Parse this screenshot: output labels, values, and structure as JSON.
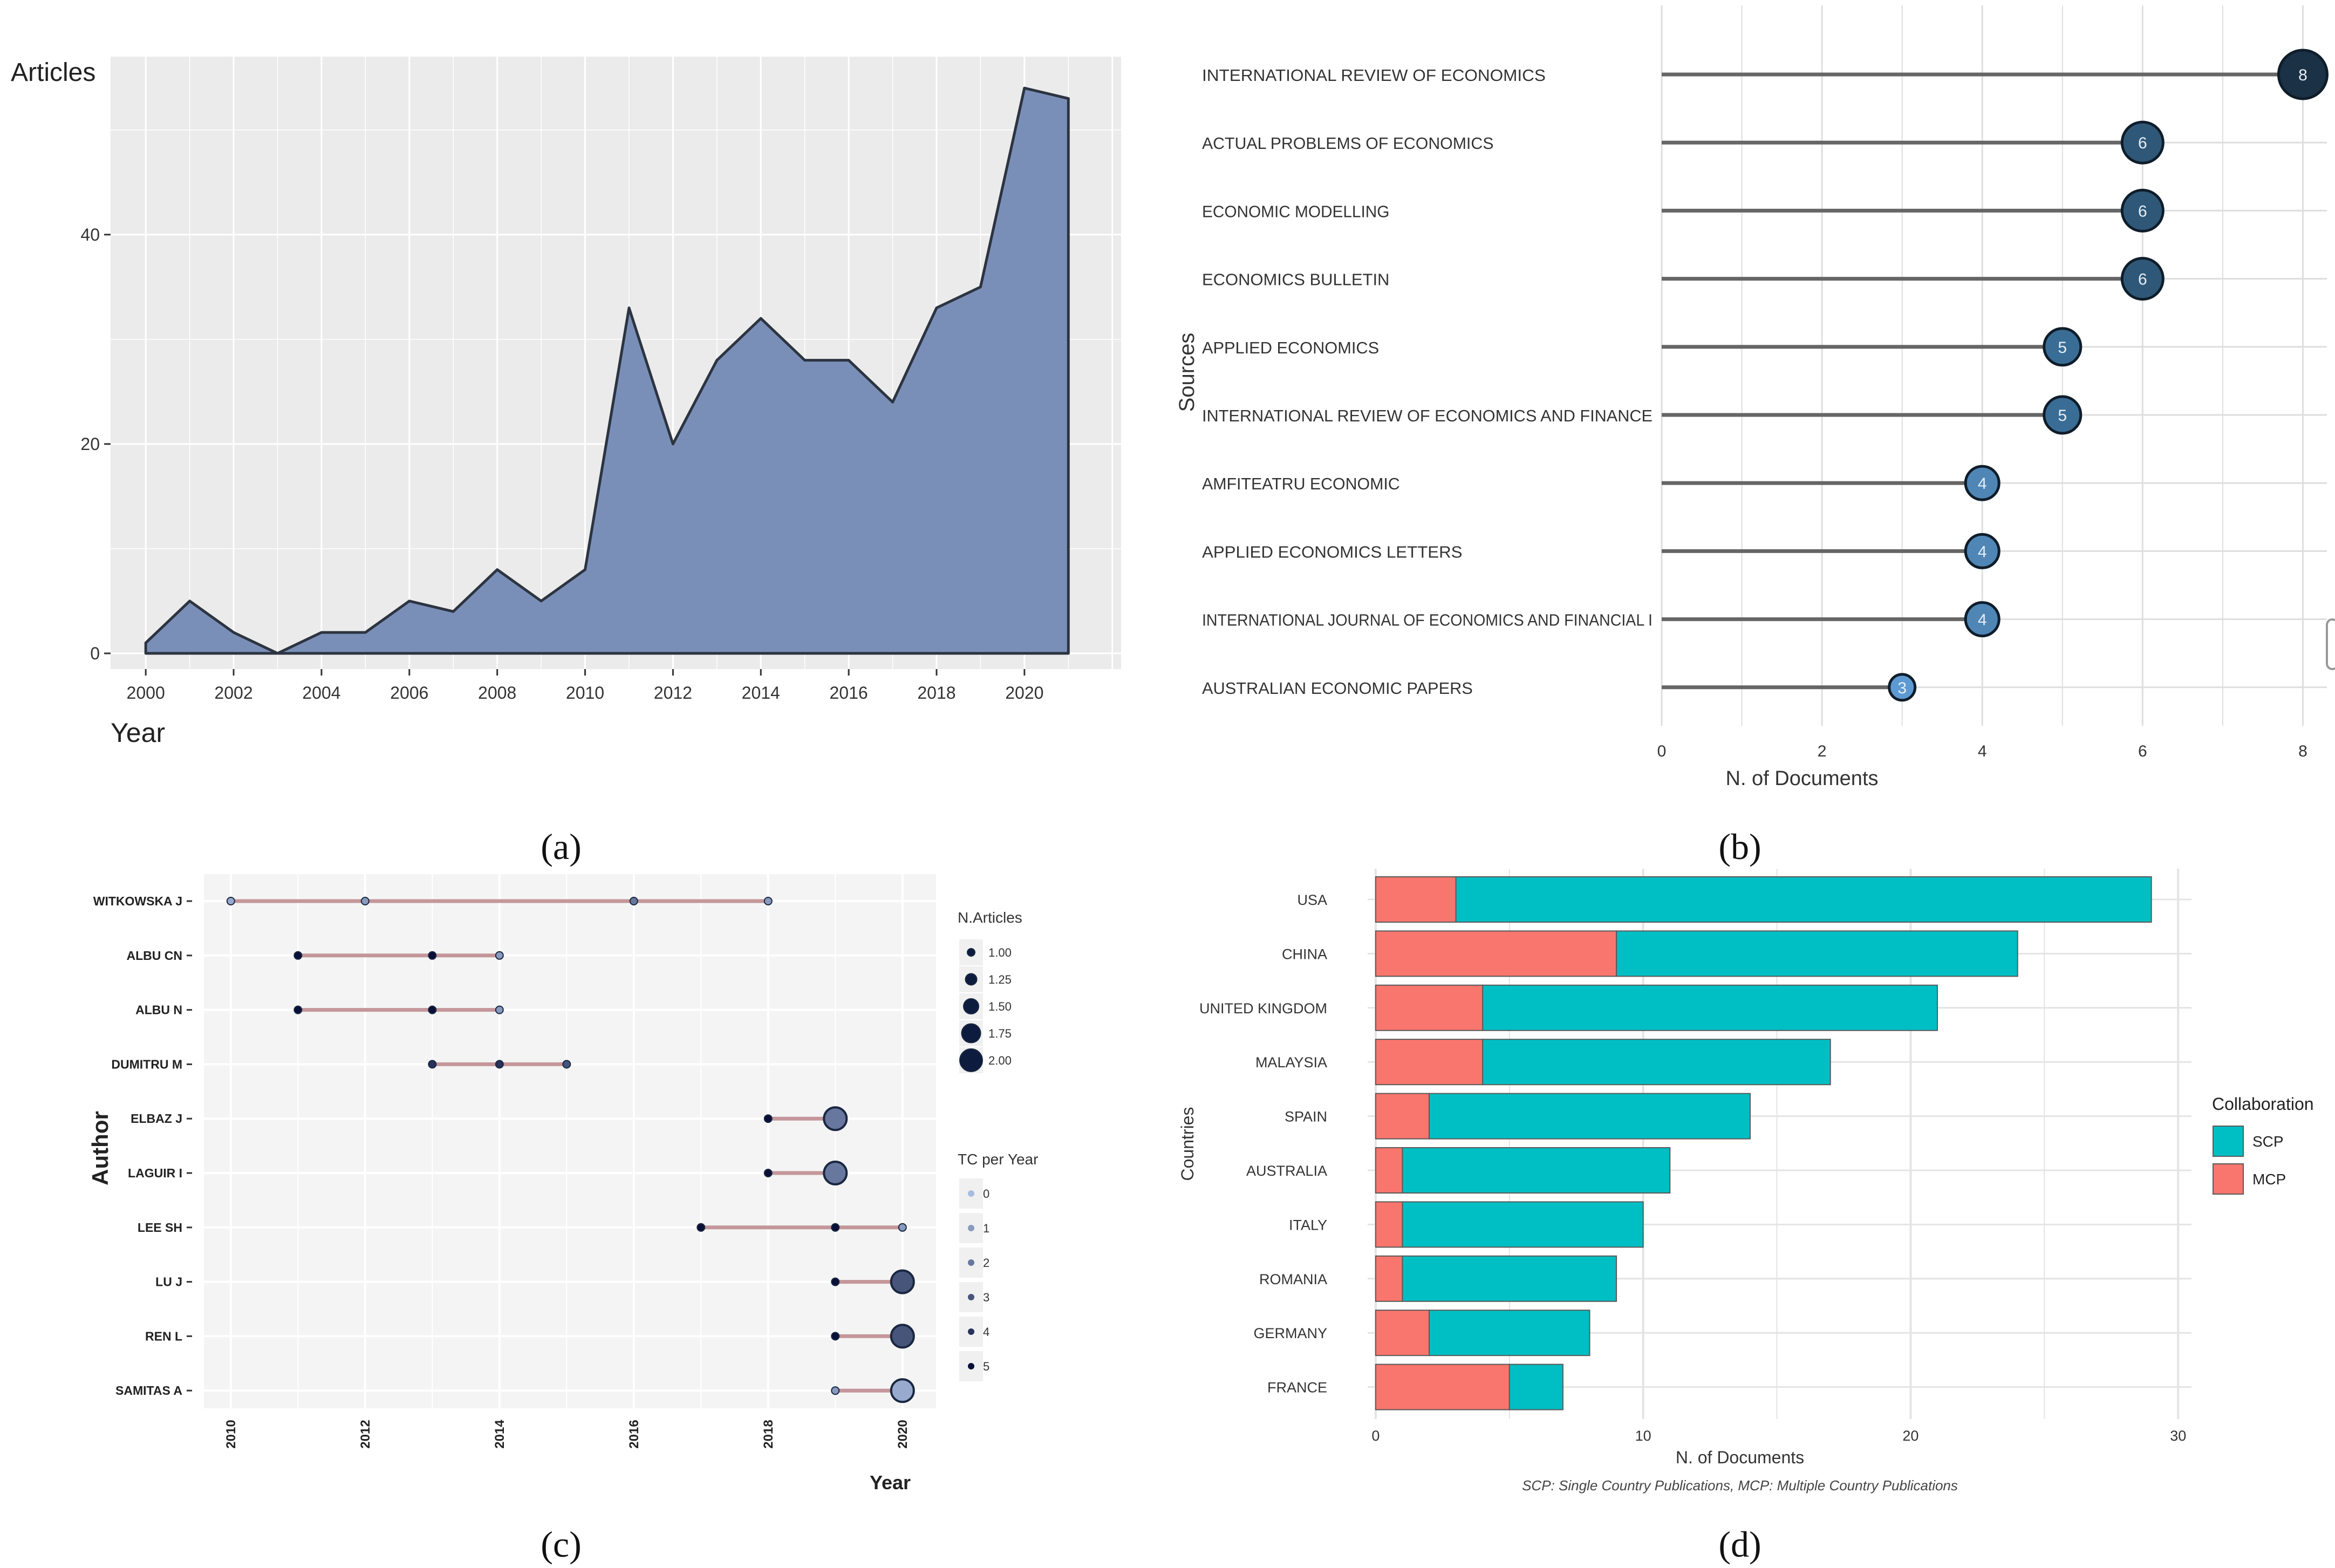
{
  "captions": [
    "(a)",
    "(b)",
    "(c)",
    "(d)"
  ],
  "footnote_d": "SCP: Single Country Publications, MCP: Multiple Country Publications",
  "colors": {
    "area_fill": "#7a8fb8",
    "area_line": "#2c3440",
    "panel_bg": "#ebebeb",
    "lollipop_line": "#666666",
    "scp": "#00bfc4",
    "mcp": "#f8766d",
    "segment_c": "#c4969a"
  },
  "chart_data": [
    {
      "type": "area",
      "title": "",
      "ylabel": "Articles",
      "xlabel": "Year",
      "x": [
        2000,
        2001,
        2002,
        2003,
        2004,
        2005,
        2006,
        2007,
        2008,
        2009,
        2010,
        2011,
        2012,
        2013,
        2014,
        2015,
        2016,
        2017,
        2018,
        2019,
        2020,
        2021
      ],
      "values": [
        1,
        5,
        2,
        0,
        2,
        2,
        5,
        4,
        8,
        5,
        8,
        33,
        20,
        28,
        32,
        28,
        28,
        24,
        33,
        35,
        54,
        53
      ],
      "xticks": [
        "2000",
        "2002",
        "2004",
        "2006",
        "2008",
        "2010",
        "2012",
        "2014",
        "2016",
        "2018",
        "2020"
      ],
      "yticks": [
        "0",
        "20",
        "40"
      ],
      "xlim": [
        1999.2,
        2022.2
      ],
      "ylim": [
        -1.5,
        57
      ]
    },
    {
      "type": "lollipop",
      "ylabel": "Sources",
      "xlabel": "N. of Documents",
      "categories": [
        "INTERNATIONAL REVIEW OF ECONOMICS",
        "ACTUAL PROBLEMS OF ECONOMICS",
        "ECONOMIC MODELLING",
        "ECONOMICS BULLETIN",
        "APPLIED ECONOMICS",
        "INTERNATIONAL REVIEW OF ECONOMICS AND FINANCE",
        "AMFITEATRU ECONOMIC",
        "APPLIED ECONOMICS LETTERS",
        "INTERNATIONAL JOURNAL OF ECONOMICS AND FINANCIAL I",
        "AUSTRALIAN ECONOMIC PAPERS"
      ],
      "values": [
        8,
        6,
        6,
        6,
        5,
        5,
        4,
        4,
        4,
        3
      ],
      "point_labels": [
        "8",
        "6",
        "6",
        "6",
        "5",
        "5",
        "4",
        "4",
        "4",
        "3"
      ],
      "xticks": [
        "0",
        "2",
        "4",
        "6",
        "8"
      ],
      "xlim": [
        0,
        8.3
      ]
    },
    {
      "type": "scatter",
      "ylabel": "Author",
      "xlabel": "Year",
      "authors": [
        "WITKOWSKA J",
        "ALBU CN",
        "ALBU N",
        "DUMITRU M",
        "ELBAZ J",
        "LAGUIR I",
        "LEE SH",
        "LU J",
        "REN L",
        "SAMITAS A"
      ],
      "ranges": [
        [
          2010,
          2018
        ],
        [
          2011,
          2014
        ],
        [
          2011,
          2014
        ],
        [
          2013,
          2015
        ],
        [
          2018,
          2019
        ],
        [
          2018,
          2019
        ],
        [
          2017,
          2020
        ],
        [
          2019,
          2020
        ],
        [
          2019,
          2020
        ],
        [
          2019,
          2020
        ]
      ],
      "points": [
        {
          "author": 0,
          "year": 2010,
          "n": 1,
          "tc": 0.5
        },
        {
          "author": 0,
          "year": 2012,
          "n": 1,
          "tc": 1
        },
        {
          "author": 0,
          "year": 2016,
          "n": 1,
          "tc": 2
        },
        {
          "author": 0,
          "year": 2018,
          "n": 1,
          "tc": 1
        },
        {
          "author": 1,
          "year": 2011,
          "n": 1,
          "tc": 5
        },
        {
          "author": 1,
          "year": 2013,
          "n": 1,
          "tc": 5
        },
        {
          "author": 1,
          "year": 2014,
          "n": 1,
          "tc": 1
        },
        {
          "author": 2,
          "year": 2011,
          "n": 1,
          "tc": 5
        },
        {
          "author": 2,
          "year": 2013,
          "n": 1,
          "tc": 5
        },
        {
          "author": 2,
          "year": 2014,
          "n": 1,
          "tc": 1
        },
        {
          "author": 3,
          "year": 2013,
          "n": 1,
          "tc": 4
        },
        {
          "author": 3,
          "year": 2014,
          "n": 1,
          "tc": 4
        },
        {
          "author": 3,
          "year": 2015,
          "n": 1,
          "tc": 3
        },
        {
          "author": 4,
          "year": 2018,
          "n": 1,
          "tc": 5
        },
        {
          "author": 4,
          "year": 2019,
          "n": 2,
          "tc": 2
        },
        {
          "author": 5,
          "year": 2018,
          "n": 1,
          "tc": 5
        },
        {
          "author": 5,
          "year": 2019,
          "n": 2,
          "tc": 2
        },
        {
          "author": 6,
          "year": 2017,
          "n": 1,
          "tc": 5
        },
        {
          "author": 6,
          "year": 2019,
          "n": 1,
          "tc": 5
        },
        {
          "author": 6,
          "year": 2020,
          "n": 1,
          "tc": 1
        },
        {
          "author": 7,
          "year": 2019,
          "n": 1,
          "tc": 5
        },
        {
          "author": 7,
          "year": 2020,
          "n": 2,
          "tc": 3
        },
        {
          "author": 8,
          "year": 2019,
          "n": 1,
          "tc": 5
        },
        {
          "author": 8,
          "year": 2020,
          "n": 2,
          "tc": 3
        },
        {
          "author": 9,
          "year": 2019,
          "n": 1,
          "tc": 1
        },
        {
          "author": 9,
          "year": 2020,
          "n": 2,
          "tc": 0.5
        }
      ],
      "xticks": [
        "2010",
        "2012",
        "2014",
        "2016",
        "2018",
        "2020"
      ],
      "xlim": [
        2009.6,
        2020.5
      ],
      "legend_size": {
        "title": "N.Articles",
        "labels": [
          "1.00",
          "1.25",
          "1.50",
          "1.75",
          "2.00"
        ],
        "values": [
          1,
          1.25,
          1.5,
          1.75,
          2
        ]
      },
      "legend_color": {
        "title": "TC per Year",
        "labels": [
          "0",
          "1",
          "2",
          "3",
          "4",
          "5"
        ],
        "values": [
          0,
          1,
          2,
          3,
          4,
          5
        ]
      }
    },
    {
      "type": "bar",
      "stacked": true,
      "orientation": "horizontal",
      "ylabel": "Countries",
      "xlabel": "N. of Documents",
      "categories": [
        "USA",
        "CHINA",
        "UNITED KINGDOM",
        "MALAYSIA",
        "SPAIN",
        "AUSTRALIA",
        "ITALY",
        "ROMANIA",
        "GERMANY",
        "FRANCE"
      ],
      "series": [
        {
          "name": "MCP",
          "values": [
            3,
            9,
            4,
            4,
            2,
            1,
            1,
            1,
            2,
            5
          ]
        },
        {
          "name": "SCP",
          "values": [
            26,
            15,
            17,
            13,
            12,
            10,
            9,
            8,
            6,
            2
          ]
        }
      ],
      "xticks": [
        "0",
        "10",
        "20",
        "30"
      ],
      "xlim": [
        -0.3,
        30.5
      ],
      "legend_title": "Collaboration",
      "legend_labels": [
        "SCP",
        "MCP"
      ]
    }
  ]
}
